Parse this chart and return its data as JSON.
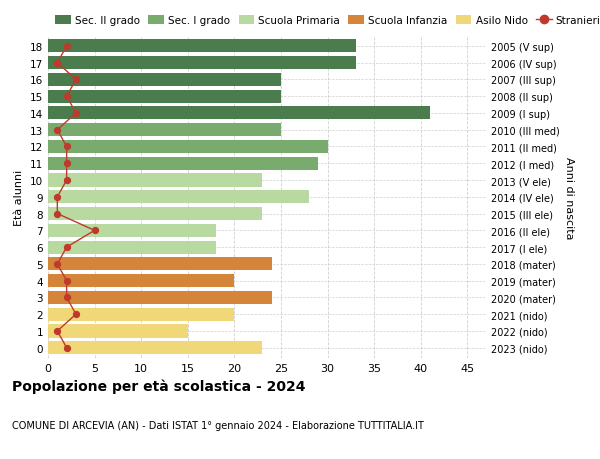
{
  "ages": [
    18,
    17,
    16,
    15,
    14,
    13,
    12,
    11,
    10,
    9,
    8,
    7,
    6,
    5,
    4,
    3,
    2,
    1,
    0
  ],
  "right_labels": [
    "2005 (V sup)",
    "2006 (IV sup)",
    "2007 (III sup)",
    "2008 (II sup)",
    "2009 (I sup)",
    "2010 (III med)",
    "2011 (II med)",
    "2012 (I med)",
    "2013 (V ele)",
    "2014 (IV ele)",
    "2015 (III ele)",
    "2016 (II ele)",
    "2017 (I ele)",
    "2018 (mater)",
    "2019 (mater)",
    "2020 (mater)",
    "2021 (nido)",
    "2022 (nido)",
    "2023 (nido)"
  ],
  "bar_values": [
    33,
    33,
    25,
    25,
    41,
    25,
    30,
    29,
    23,
    28,
    23,
    18,
    18,
    24,
    20,
    24,
    20,
    15,
    23
  ],
  "bar_colors": [
    "#4a7c4e",
    "#4a7c4e",
    "#4a7c4e",
    "#4a7c4e",
    "#4a7c4e",
    "#7aab6e",
    "#7aab6e",
    "#7aab6e",
    "#b8d9a0",
    "#b8d9a0",
    "#b8d9a0",
    "#b8d9a0",
    "#b8d9a0",
    "#d4853a",
    "#d4853a",
    "#d4853a",
    "#f0d878",
    "#f0d878",
    "#f0d878"
  ],
  "stranieri_values": [
    2,
    1,
    3,
    2,
    3,
    1,
    2,
    2,
    2,
    1,
    1,
    5,
    2,
    1,
    2,
    2,
    3,
    1,
    2
  ],
  "stranieri_color": "#c0392b",
  "title": "Popolazione per età scolastica - 2024",
  "subtitle": "COMUNE DI ARCEVIA (AN) - Dati ISTAT 1° gennaio 2024 - Elaborazione TUTTITALIA.IT",
  "ylabel": "Età alunni",
  "right_ylabel": "Anni di nascita",
  "xlim": [
    0,
    47
  ],
  "xticks": [
    0,
    5,
    10,
    15,
    20,
    25,
    30,
    35,
    40,
    45
  ],
  "legend_items": [
    {
      "label": "Sec. II grado",
      "color": "#4a7c4e"
    },
    {
      "label": "Sec. I grado",
      "color": "#7aab6e"
    },
    {
      "label": "Scuola Primaria",
      "color": "#b8d9a0"
    },
    {
      "label": "Scuola Infanzia",
      "color": "#d4853a"
    },
    {
      "label": "Asilo Nido",
      "color": "#f0d878"
    },
    {
      "label": "Stranieri",
      "color": "#c0392b"
    }
  ],
  "background_color": "#ffffff",
  "grid_color": "#d0d0d0"
}
